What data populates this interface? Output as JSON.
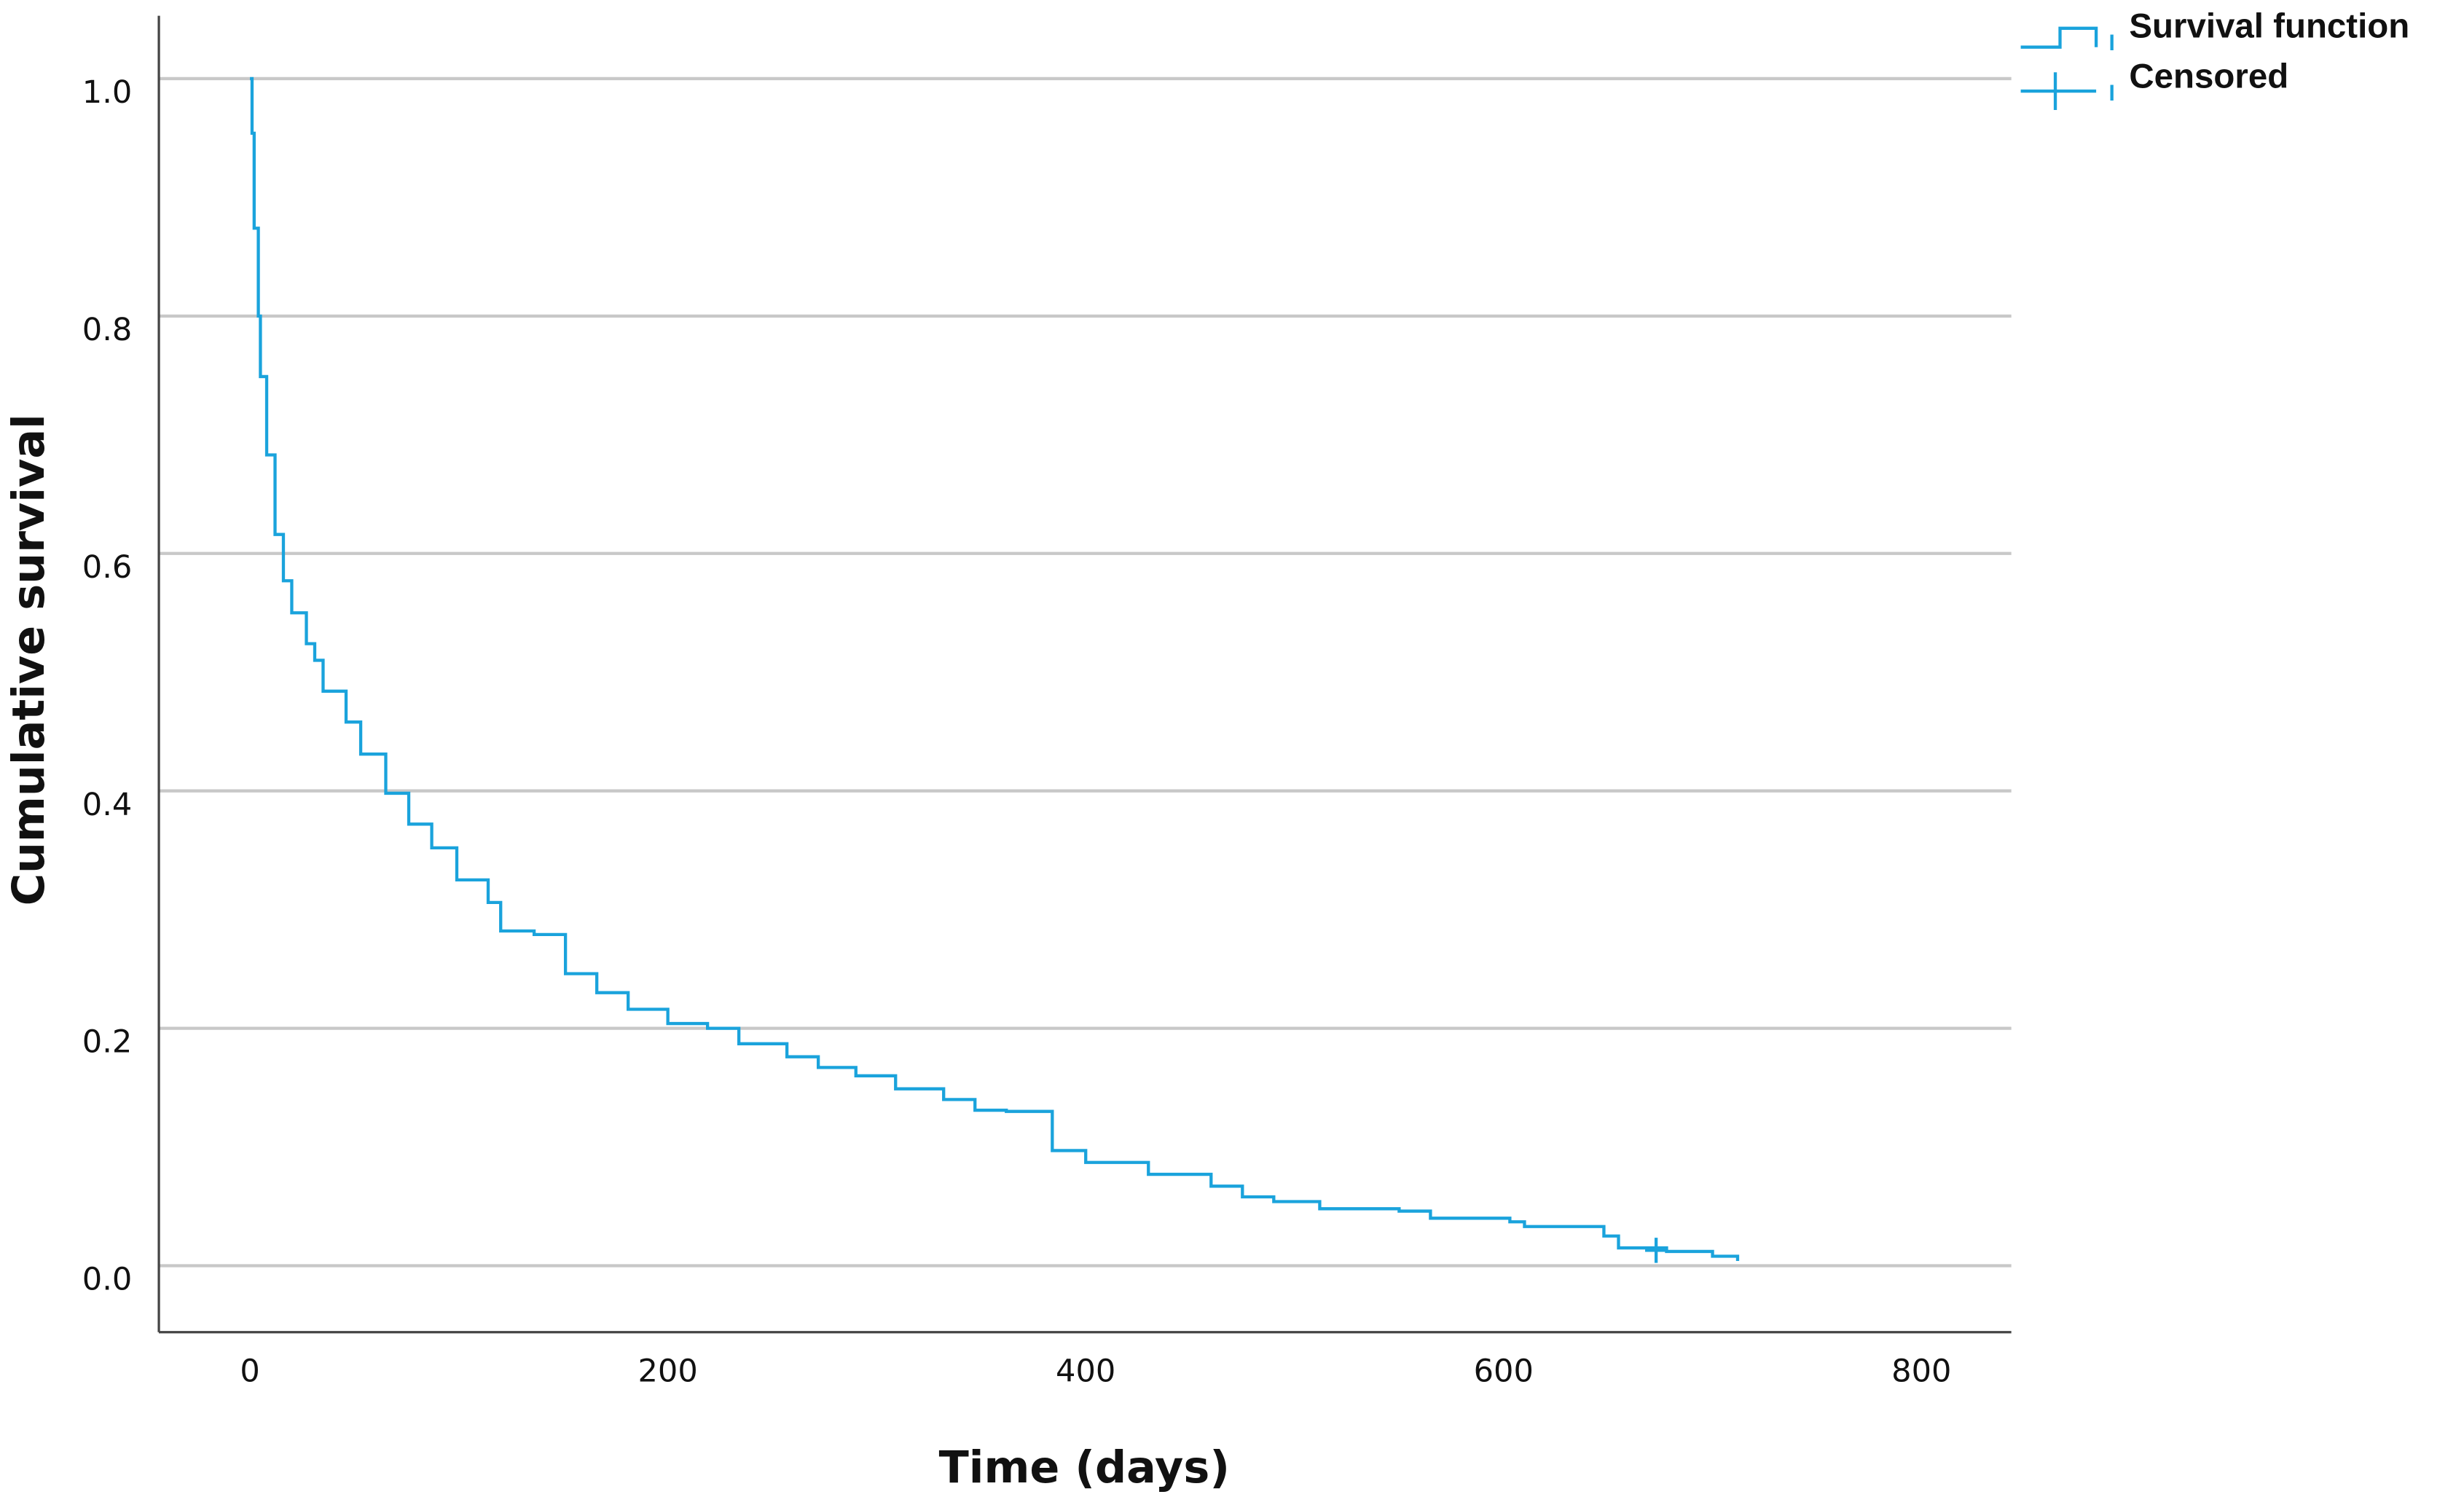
{
  "chart_data": {
    "type": "step",
    "xlabel": "Time (days)",
    "ylabel": "Cumulative survival",
    "xlim": [
      -43.6,
      843
    ],
    "ylim": [
      -0.056,
      1.053
    ],
    "xticks": [
      0,
      200,
      400,
      600,
      800
    ],
    "yticks": [
      {
        "value": 0,
        "label": "0.0"
      },
      0.2,
      0.4,
      0.6,
      0.8,
      {
        "value": 1,
        "label": "1.0"
      }
    ],
    "grid": true,
    "legend": "upper right",
    "series": [
      {
        "name": "Survival function",
        "color": "#1aa3dc",
        "x": [
          0,
          1,
          2,
          4,
          5,
          8,
          12,
          16,
          20,
          27,
          31,
          35,
          46,
          53,
          65,
          76,
          87,
          99,
          114,
          120,
          136,
          151,
          166,
          181,
          200,
          219,
          234,
          257,
          272,
          290,
          309,
          332,
          347,
          362,
          384,
          400,
          430,
          460,
          475,
          490,
          512,
          550,
          565,
          603,
          610,
          648,
          655,
          678,
          700,
          712
        ],
        "values": [
          1.0,
          0.954,
          0.874,
          0.8,
          0.749,
          0.683,
          0.616,
          0.577,
          0.55,
          0.524,
          0.51,
          0.484,
          0.458,
          0.431,
          0.398,
          0.372,
          0.352,
          0.325,
          0.306,
          0.282,
          0.279,
          0.246,
          0.23,
          0.216,
          0.204,
          0.2,
          0.187,
          0.176,
          0.167,
          0.16,
          0.149,
          0.14,
          0.131,
          0.13,
          0.097,
          0.087,
          0.077,
          0.067,
          0.058,
          0.054,
          0.048,
          0.046,
          0.04,
          0.037,
          0.033,
          0.025,
          0.015,
          0.012,
          0.008,
          0.004
        ]
      },
      {
        "name": "Censored",
        "color": "#1aa3dc",
        "x": [
          673
        ],
        "values": [
          0.013
        ]
      }
    ]
  }
}
